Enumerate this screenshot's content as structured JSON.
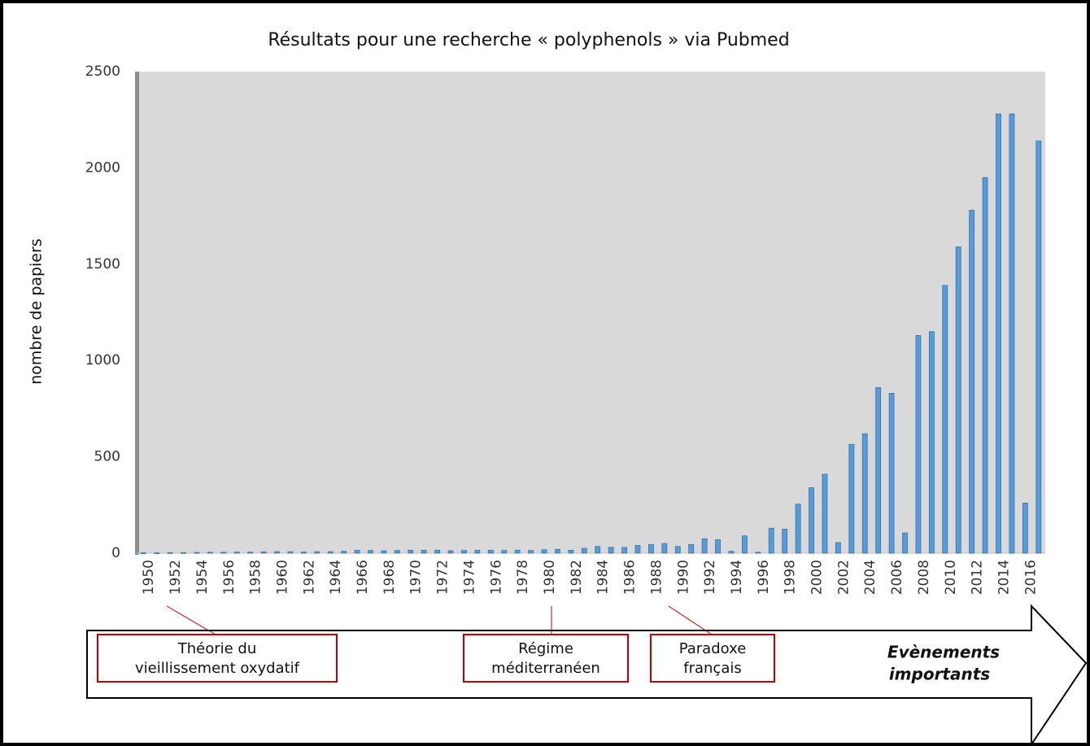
{
  "chart_data": {
    "type": "bar",
    "title": "Résultats pour une recherche « polyphenols »  via Pubmed",
    "y_label": "nombre de papiers",
    "categories": [
      "1950",
      null,
      "1952",
      null,
      "1954",
      null,
      "1956",
      null,
      "1958",
      null,
      "1960",
      null,
      "1962",
      null,
      "1964",
      null,
      "1966",
      null,
      "1968",
      null,
      "1970",
      null,
      "1972",
      null,
      "1974",
      null,
      "1976",
      null,
      "1978",
      null,
      "1980",
      null,
      "1982",
      null,
      "1984",
      null,
      "1986",
      null,
      "1988",
      null,
      "1990",
      null,
      "1992",
      null,
      "1994",
      null,
      "1996",
      null,
      "1998",
      null,
      "2000",
      null,
      "2002",
      null,
      "2004",
      null,
      "2006",
      null,
      "2008",
      null,
      "2010",
      null,
      "2012",
      null,
      "2014",
      null,
      "2016",
      null
    ],
    "values": [
      2,
      2,
      3,
      3,
      4,
      5,
      5,
      6,
      6,
      7,
      8,
      8,
      6,
      8,
      8,
      10,
      15,
      14,
      12,
      14,
      15,
      15,
      16,
      13,
      14,
      15,
      15,
      14,
      16,
      14,
      18,
      20,
      15,
      25,
      35,
      30,
      30,
      40,
      45,
      50,
      35,
      45,
      75,
      70,
      10,
      90,
      5,
      130,
      125,
      255,
      340,
      410,
      55,
      565,
      620,
      860,
      830,
      105,
      1130,
      1150,
      1390,
      1590,
      1780,
      1950,
      2280,
      2280,
      260,
      2140
    ],
    "color": "#5b9bd5",
    "ylim": [
      0,
      2500
    ],
    "yticks": [
      0,
      500,
      1000,
      1500,
      2000,
      2500
    ],
    "grid": false,
    "annotations": [
      {
        "lines": [
          "Théorie du",
          "vieillissement oxydatif"
        ]
      },
      {
        "lines": [
          "Régime",
          "méditerranéen"
        ]
      },
      {
        "lines": [
          "Paradoxe",
          "français"
        ]
      },
      {
        "lines": [
          "Evènements",
          "importants"
        ]
      }
    ]
  }
}
